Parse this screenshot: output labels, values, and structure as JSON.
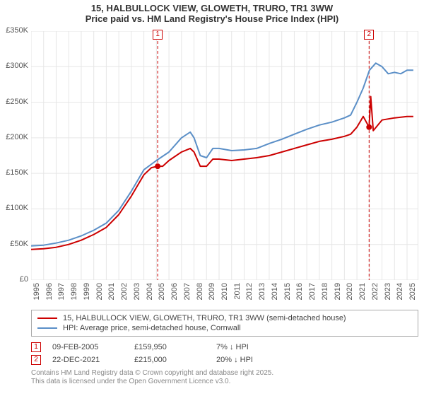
{
  "title": {
    "line1": "15, HALBULLOCK VIEW, GLOWETH, TRURO, TR1 3WW",
    "line2": "Price paid vs. HM Land Registry's House Price Index (HPI)"
  },
  "chart": {
    "type": "line",
    "background_color": "#ffffff",
    "grid_color": "#e6e6e6",
    "ylim": [
      0,
      350000
    ],
    "ytick_step": 50000,
    "yticks": [
      "£0",
      "£50K",
      "£100K",
      "£150K",
      "£200K",
      "£250K",
      "£300K",
      "£350K"
    ],
    "xlim": [
      1995,
      2025.9
    ],
    "xticks": [
      1995,
      1996,
      1997,
      1998,
      1999,
      2000,
      2001,
      2002,
      2003,
      2004,
      2005,
      2006,
      2007,
      2008,
      2009,
      2010,
      2011,
      2012,
      2013,
      2014,
      2015,
      2016,
      2017,
      2018,
      2019,
      2020,
      2021,
      2022,
      2023,
      2024,
      2025
    ],
    "series": [
      {
        "id": "price_paid",
        "label": "15, HALBULLOCK VIEW, GLOWETH, TRURO, TR1 3WW (semi-detached house)",
        "color": "#cc0000",
        "line_width": 2,
        "data": [
          [
            1995,
            43000
          ],
          [
            1996,
            44000
          ],
          [
            1997,
            46000
          ],
          [
            1998,
            50000
          ],
          [
            1999,
            56000
          ],
          [
            2000,
            64000
          ],
          [
            2001,
            74000
          ],
          [
            2002,
            92000
          ],
          [
            2003,
            118000
          ],
          [
            2004,
            148000
          ],
          [
            2004.6,
            158000
          ],
          [
            2005.1,
            159950
          ],
          [
            2005.5,
            160000
          ],
          [
            2006,
            168000
          ],
          [
            2007,
            180000
          ],
          [
            2007.7,
            185000
          ],
          [
            2008,
            180000
          ],
          [
            2008.5,
            160000
          ],
          [
            2009,
            160000
          ],
          [
            2009.5,
            170000
          ],
          [
            2010,
            170000
          ],
          [
            2011,
            168000
          ],
          [
            2012,
            170000
          ],
          [
            2013,
            172000
          ],
          [
            2014,
            175000
          ],
          [
            2015,
            180000
          ],
          [
            2016,
            185000
          ],
          [
            2017,
            190000
          ],
          [
            2018,
            195000
          ],
          [
            2019,
            198000
          ],
          [
            2020,
            202000
          ],
          [
            2020.5,
            205000
          ],
          [
            2021,
            215000
          ],
          [
            2021.5,
            230000
          ],
          [
            2021.97,
            215000
          ],
          [
            2022.1,
            258000
          ],
          [
            2022.3,
            210000
          ],
          [
            2023,
            225000
          ],
          [
            2024,
            228000
          ],
          [
            2025,
            230000
          ],
          [
            2025.5,
            230000
          ]
        ]
      },
      {
        "id": "hpi",
        "label": "HPI: Average price, semi-detached house, Cornwall",
        "color": "#5b8fc7",
        "line_width": 2,
        "data": [
          [
            1995,
            48000
          ],
          [
            1996,
            49000
          ],
          [
            1997,
            52000
          ],
          [
            1998,
            56000
          ],
          [
            1999,
            62000
          ],
          [
            2000,
            70000
          ],
          [
            2001,
            80000
          ],
          [
            2002,
            98000
          ],
          [
            2003,
            125000
          ],
          [
            2004,
            155000
          ],
          [
            2005,
            168000
          ],
          [
            2006,
            180000
          ],
          [
            2007,
            200000
          ],
          [
            2007.7,
            208000
          ],
          [
            2008,
            200000
          ],
          [
            2008.5,
            175000
          ],
          [
            2009,
            172000
          ],
          [
            2009.5,
            185000
          ],
          [
            2010,
            185000
          ],
          [
            2011,
            182000
          ],
          [
            2012,
            183000
          ],
          [
            2013,
            185000
          ],
          [
            2014,
            192000
          ],
          [
            2015,
            198000
          ],
          [
            2016,
            205000
          ],
          [
            2017,
            212000
          ],
          [
            2018,
            218000
          ],
          [
            2019,
            222000
          ],
          [
            2020,
            228000
          ],
          [
            2020.5,
            232000
          ],
          [
            2021,
            250000
          ],
          [
            2021.5,
            270000
          ],
          [
            2022,
            295000
          ],
          [
            2022.5,
            305000
          ],
          [
            2023,
            300000
          ],
          [
            2023.5,
            290000
          ],
          [
            2024,
            292000
          ],
          [
            2024.5,
            290000
          ],
          [
            2025,
            295000
          ],
          [
            2025.5,
            295000
          ]
        ]
      }
    ],
    "markers": [
      {
        "n": "1",
        "x": 2005.1,
        "y": 159950,
        "color": "#cc0000"
      },
      {
        "n": "2",
        "x": 2021.97,
        "y": 215000,
        "color": "#cc0000"
      }
    ],
    "vlines": [
      {
        "x": 2005.1,
        "color": "#cc0000",
        "dash": "4,3"
      },
      {
        "x": 2021.97,
        "color": "#cc0000",
        "dash": "4,3"
      }
    ]
  },
  "legend": {
    "rows": [
      {
        "color": "#cc0000",
        "label_key": "chart.series.0.label"
      },
      {
        "color": "#5b8fc7",
        "label_key": "chart.series.1.label"
      }
    ]
  },
  "transactions": [
    {
      "n": "1",
      "color": "#cc0000",
      "date": "09-FEB-2005",
      "price": "£159,950",
      "delta": "7% ↓ HPI"
    },
    {
      "n": "2",
      "color": "#cc0000",
      "date": "22-DEC-2021",
      "price": "£215,000",
      "delta": "20% ↓ HPI"
    }
  ],
  "copyright": {
    "line1": "Contains HM Land Registry data © Crown copyright and database right 2025.",
    "line2": "This data is licensed under the Open Government Licence v3.0."
  }
}
